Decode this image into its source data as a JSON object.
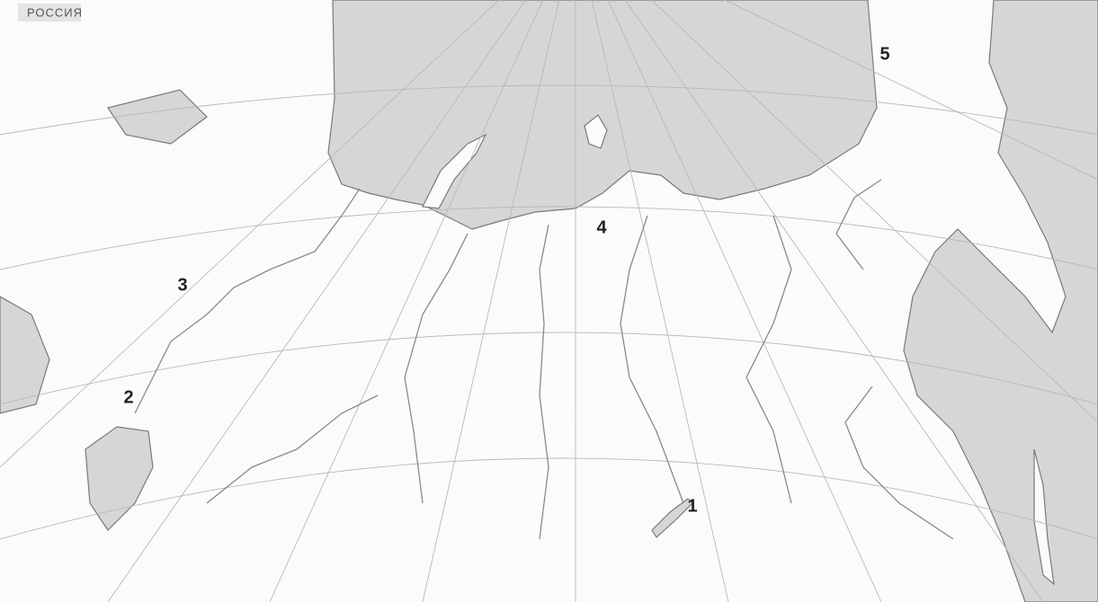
{
  "title": "РОССИЯ",
  "markers": [
    "1",
    "2",
    "3",
    "4",
    "5"
  ]
}
